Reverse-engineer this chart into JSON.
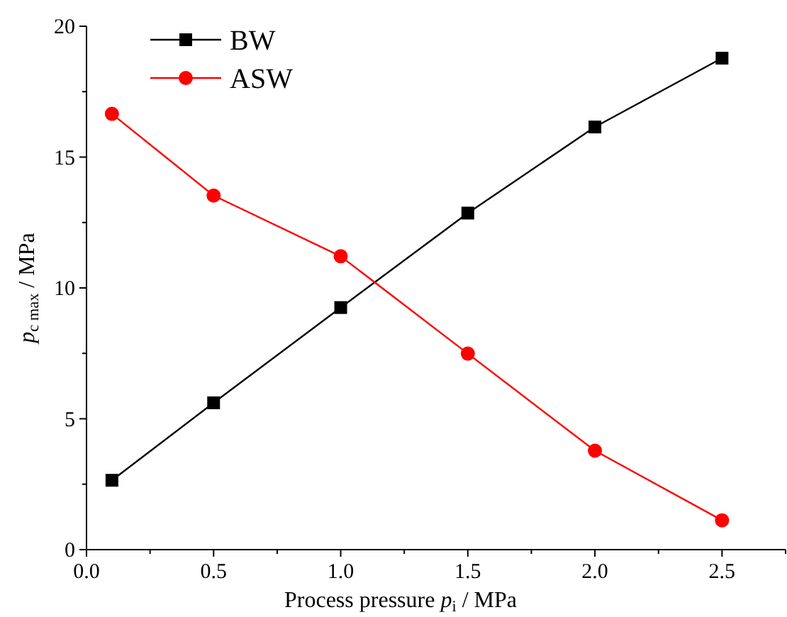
{
  "chart_data": {
    "type": "line",
    "xlabel": "Process pressure p$_{i}$ / MPa",
    "ylabel": "p$_{c max}$ / MPa",
    "xlim": [
      0,
      2.75
    ],
    "ylim": [
      0,
      20
    ],
    "xticks": [
      {
        "value": 0,
        "label": "0.0"
      },
      {
        "value": 0.25,
        "label": null
      },
      {
        "value": 0.5,
        "label": "0.5"
      },
      {
        "value": 0.75,
        "label": null
      },
      {
        "value": 1,
        "label": "1.0"
      },
      {
        "value": 1.25,
        "label": null
      },
      {
        "value": 1.5,
        "label": "1.5"
      },
      {
        "value": 1.75,
        "label": null
      },
      {
        "value": 2,
        "label": "2.0"
      },
      {
        "value": 2.25,
        "label": null
      },
      {
        "value": 2.5,
        "label": "2.5"
      },
      {
        "value": 2.75,
        "label": null
      }
    ],
    "yticks": [
      0,
      {
        "value": 2.5,
        "label": null
      },
      5,
      {
        "value": 7.5,
        "label": null
      },
      10,
      {
        "value": 12.5,
        "label": null
      },
      15,
      {
        "value": 17.5,
        "label": null
      },
      20
    ],
    "x": [
      0.1,
      0.5,
      1.0,
      1.5,
      2.0,
      2.5
    ],
    "legend": "top left",
    "grid": false,
    "line_style": "solid",
    "series": [
      {
        "name": "BW",
        "color": "#000000",
        "marker": "square",
        "values": [
          2.65,
          5.61,
          9.25,
          12.86,
          16.15,
          18.78
        ]
      },
      {
        "name": "ASW",
        "color": "#ff0000",
        "marker": "circle",
        "values": [
          16.65,
          13.53,
          11.21,
          7.49,
          3.78,
          1.12
        ]
      }
    ]
  }
}
